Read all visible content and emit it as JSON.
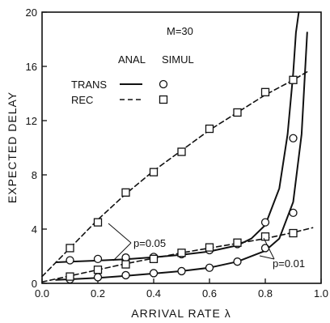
{
  "chart_data": {
    "type": "line",
    "xlabel": "ARRIVAL RATE λ",
    "ylabel": "EXPECTED DELAY",
    "xlim": [
      0.0,
      1.0
    ],
    "ylim": [
      0,
      20
    ],
    "x_ticks": [
      "0.0",
      "0.2",
      "0.4",
      "0.6",
      "0.8",
      "1.0"
    ],
    "y_ticks": [
      "0",
      "4",
      "8",
      "12",
      "16",
      "20"
    ],
    "grid": false,
    "annotations": {
      "m": "M=30",
      "anal": "ANAL",
      "simul": "SIMUL",
      "trans": "TRANS",
      "rec": "REC",
      "p05": "p=0.05",
      "p01": "p=0.01"
    },
    "series": [
      {
        "label": "TRANS",
        "p": "0.05",
        "kind": "analytic",
        "x": [
          0.05,
          0.1,
          0.2,
          0.3,
          0.4,
          0.5,
          0.6,
          0.7,
          0.75,
          0.8,
          0.85,
          0.88,
          0.9,
          0.91,
          0.92
        ],
        "y": [
          1.55,
          1.6,
          1.68,
          1.78,
          1.92,
          2.1,
          2.35,
          2.8,
          3.3,
          4.3,
          7.0,
          11.0,
          15.5,
          18.5,
          20.0
        ]
      },
      {
        "label": "TRANS",
        "p": "0.05",
        "kind": "simulation",
        "x": [
          0.1,
          0.2,
          0.3,
          0.4,
          0.5,
          0.6,
          0.7,
          0.8,
          0.9
        ],
        "y": [
          1.7,
          1.8,
          1.9,
          1.95,
          2.15,
          2.45,
          2.9,
          4.5,
          10.7
        ]
      },
      {
        "label": "TRANS",
        "p": "0.01",
        "kind": "analytic",
        "x": [
          0.05,
          0.1,
          0.2,
          0.3,
          0.4,
          0.5,
          0.6,
          0.7,
          0.8,
          0.85,
          0.9,
          0.93,
          0.95
        ],
        "y": [
          0.25,
          0.3,
          0.4,
          0.55,
          0.72,
          0.9,
          1.15,
          1.6,
          2.4,
          3.3,
          6.0,
          11.0,
          18.5
        ]
      },
      {
        "label": "TRANS",
        "p": "0.01",
        "kind": "simulation",
        "x": [
          0.1,
          0.2,
          0.3,
          0.4,
          0.5,
          0.6,
          0.7,
          0.8,
          0.9
        ],
        "y": [
          0.3,
          0.45,
          0.6,
          0.75,
          0.9,
          1.15,
          1.6,
          2.6,
          5.2
        ]
      },
      {
        "label": "REC",
        "p": "0.05",
        "kind": "analytic",
        "x": [
          0.0,
          0.1,
          0.2,
          0.3,
          0.4,
          0.5,
          0.6,
          0.7,
          0.8,
          0.9,
          0.95
        ],
        "y": [
          0.5,
          2.6,
          4.7,
          6.6,
          8.3,
          9.8,
          11.3,
          12.6,
          13.9,
          15.0,
          15.6
        ]
      },
      {
        "label": "REC",
        "p": "0.05",
        "kind": "simulation",
        "x": [
          0.1,
          0.2,
          0.3,
          0.4,
          0.5,
          0.6,
          0.7,
          0.8,
          0.9
        ],
        "y": [
          2.6,
          4.5,
          6.7,
          8.2,
          9.7,
          11.4,
          12.6,
          14.1,
          15.0
        ]
      },
      {
        "label": "REC",
        "p": "0.01",
        "kind": "analytic",
        "x": [
          0.0,
          0.1,
          0.2,
          0.3,
          0.4,
          0.5,
          0.6,
          0.7,
          0.8,
          0.9,
          0.97
        ],
        "y": [
          0.1,
          0.55,
          1.0,
          1.45,
          1.85,
          2.25,
          2.6,
          2.95,
          3.3,
          3.75,
          4.1
        ]
      },
      {
        "label": "REC",
        "p": "0.01",
        "kind": "simulation",
        "x": [
          0.1,
          0.2,
          0.3,
          0.4,
          0.5,
          0.6,
          0.7,
          0.8,
          0.9
        ],
        "y": [
          0.5,
          1.0,
          1.4,
          1.8,
          2.25,
          2.65,
          3.0,
          3.45,
          3.7
        ]
      }
    ]
  }
}
